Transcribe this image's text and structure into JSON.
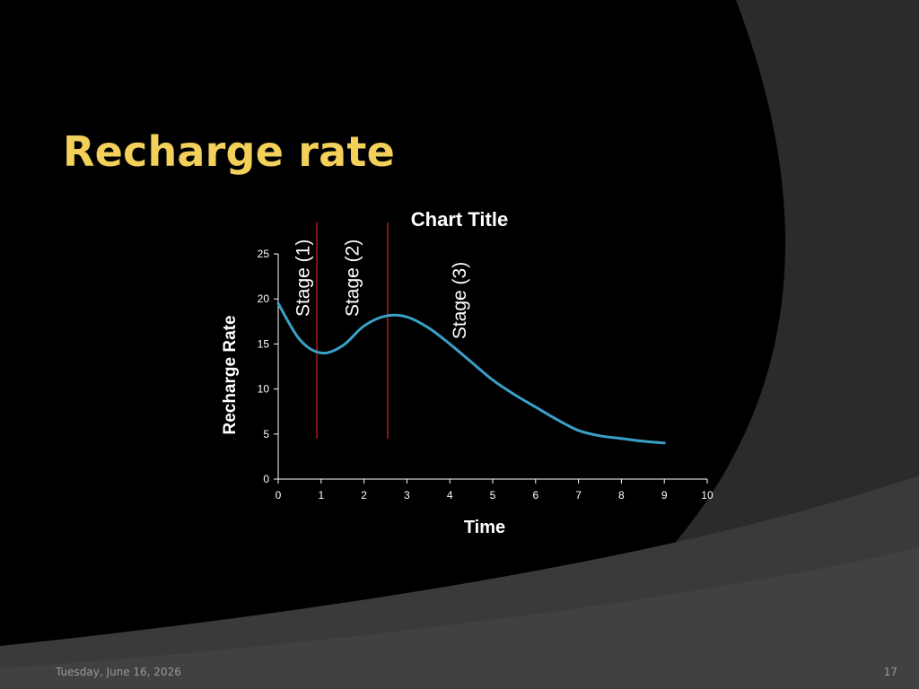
{
  "slide": {
    "title": "Recharge rate",
    "footer_date": "Tuesday, June 16, 2026",
    "page_number": "17",
    "title_color": "#f2d05a"
  },
  "chart_data": {
    "type": "line",
    "title": "Chart Title",
    "xlabel": "Time",
    "ylabel": "Recharge Rate",
    "xlim": [
      0,
      10
    ],
    "ylim": [
      0,
      25
    ],
    "xticks": [
      0,
      1,
      2,
      3,
      4,
      5,
      6,
      7,
      8,
      9,
      10
    ],
    "yticks": [
      0,
      5,
      10,
      15,
      20,
      25
    ],
    "grid": false,
    "series": [
      {
        "color": "#3aa0c8",
        "x": [
          0,
          0.5,
          1,
          1.5,
          2,
          2.5,
          3,
          3.5,
          4,
          4.5,
          5,
          5.5,
          6,
          6.5,
          7,
          7.5,
          8,
          8.5,
          9
        ],
        "y": [
          19.5,
          15.5,
          14,
          14.8,
          17,
          18.1,
          18,
          16.8,
          15,
          13,
          11,
          9.4,
          8,
          6.6,
          5.4,
          4.8,
          4.5,
          4.2,
          4
        ]
      }
    ],
    "annotations": [
      {
        "type": "vline",
        "x": 0.9,
        "y_from": 4.5,
        "y_to": 28.5,
        "color": "#b01c1c"
      },
      {
        "type": "vline",
        "x": 2.55,
        "y_from": 4.5,
        "y_to": 28.5,
        "color": "#b01c1c"
      },
      {
        "type": "label",
        "text": "Stage (1)",
        "x": 0.35,
        "y": 24
      },
      {
        "type": "label",
        "text": "Stage (2)",
        "x": 1.5,
        "y": 24
      },
      {
        "type": "label",
        "text": "Stage (3)",
        "x": 4.0,
        "y": 21.5
      }
    ]
  }
}
